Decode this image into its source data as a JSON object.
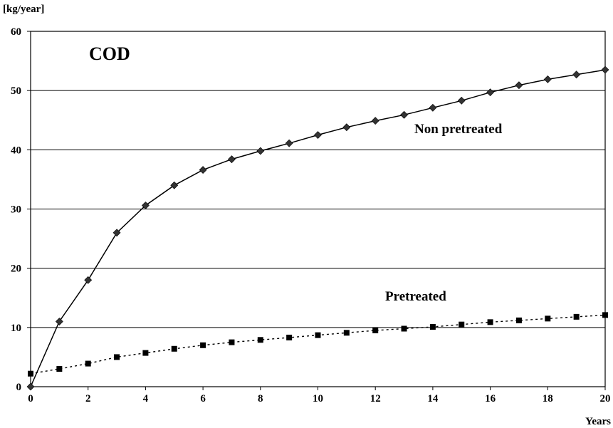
{
  "chart_data": {
    "type": "line",
    "title": "COD",
    "ylabel": "[kg/year]",
    "xlabel": "Years",
    "xlim": [
      0,
      20
    ],
    "ylim": [
      0,
      60
    ],
    "x_ticks": [
      0,
      2,
      4,
      6,
      8,
      10,
      12,
      14,
      16,
      18,
      20
    ],
    "y_ticks": [
      0,
      10,
      20,
      30,
      40,
      50,
      60
    ],
    "grid": "horizontal",
    "x": [
      0,
      1,
      2,
      3,
      4,
      5,
      6,
      7,
      8,
      9,
      10,
      11,
      12,
      13,
      14,
      15,
      16,
      17,
      18,
      19,
      20
    ],
    "series": [
      {
        "name": "Non pretreated",
        "line_style": "solid",
        "marker": "diamond",
        "values": [
          0,
          11,
          18,
          26,
          30.6,
          34,
          36.6,
          38.4,
          39.8,
          41.1,
          42.5,
          43.8,
          44.9,
          45.9,
          47.1,
          48.3,
          49.7,
          50.9,
          51.9,
          52.7,
          53.5
        ]
      },
      {
        "name": "Pretreated",
        "line_style": "dotted",
        "marker": "square",
        "values": [
          2.2,
          3,
          3.9,
          5,
          5.7,
          6.4,
          7,
          7.5,
          7.9,
          8.3,
          8.7,
          9.1,
          9.5,
          9.8,
          10.1,
          10.5,
          10.9,
          11.2,
          11.5,
          11.8,
          12.1
        ]
      }
    ]
  }
}
